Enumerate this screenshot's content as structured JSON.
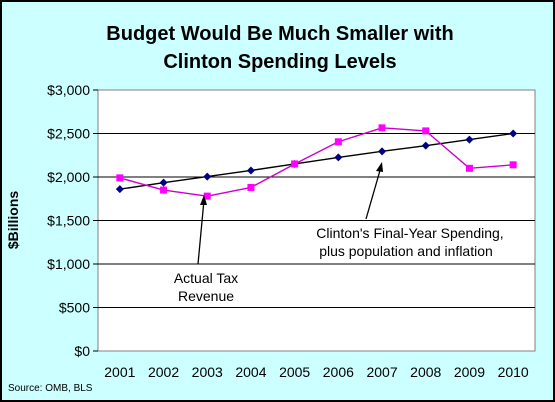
{
  "colors": {
    "background": "#ccffff",
    "plot_area": "#ffffff",
    "tax_revenue_line": "#000000",
    "tax_revenue_marker": "#000080",
    "spending_line": "#cc00cc",
    "spending_marker": "#ff00ff"
  },
  "chart_data": {
    "type": "line",
    "title_line1": "Budget Would Be Much Smaller with",
    "title_line2": "Clinton Spending Levels",
    "ylabel": "$Billions",
    "xlabel": "",
    "categories": [
      "2001",
      "2002",
      "2003",
      "2004",
      "2005",
      "2006",
      "2007",
      "2008",
      "2009",
      "2010"
    ],
    "y_tick_labels": [
      "$0",
      "$500",
      "$1,000",
      "$1,500",
      "$2,000",
      "$2,500",
      "$3,000"
    ],
    "ylim": [
      0,
      3000
    ],
    "y_step": 500,
    "grid": "horizontal",
    "legend": "none",
    "series": [
      {
        "name": "Clinton's Final-Year Spending, plus population and inflation",
        "marker": "diamond",
        "values": [
          1860,
          1935,
          2005,
          2075,
          2150,
          2225,
          2295,
          2360,
          2430,
          2500
        ]
      },
      {
        "name": "Actual Tax Revenue",
        "marker": "square",
        "values": [
          1990,
          1850,
          1780,
          1880,
          2150,
          2405,
          2565,
          2530,
          2100,
          2140
        ]
      }
    ],
    "annotations": [
      {
        "text_line1": "Actual Tax",
        "text_line2": "Revenue",
        "series_index": 1
      },
      {
        "text_line1": "Clinton's Final-Year Spending,",
        "text_line2": "plus population and inflation",
        "series_index": 0
      }
    ],
    "source": "Source: OMB, BLS"
  }
}
